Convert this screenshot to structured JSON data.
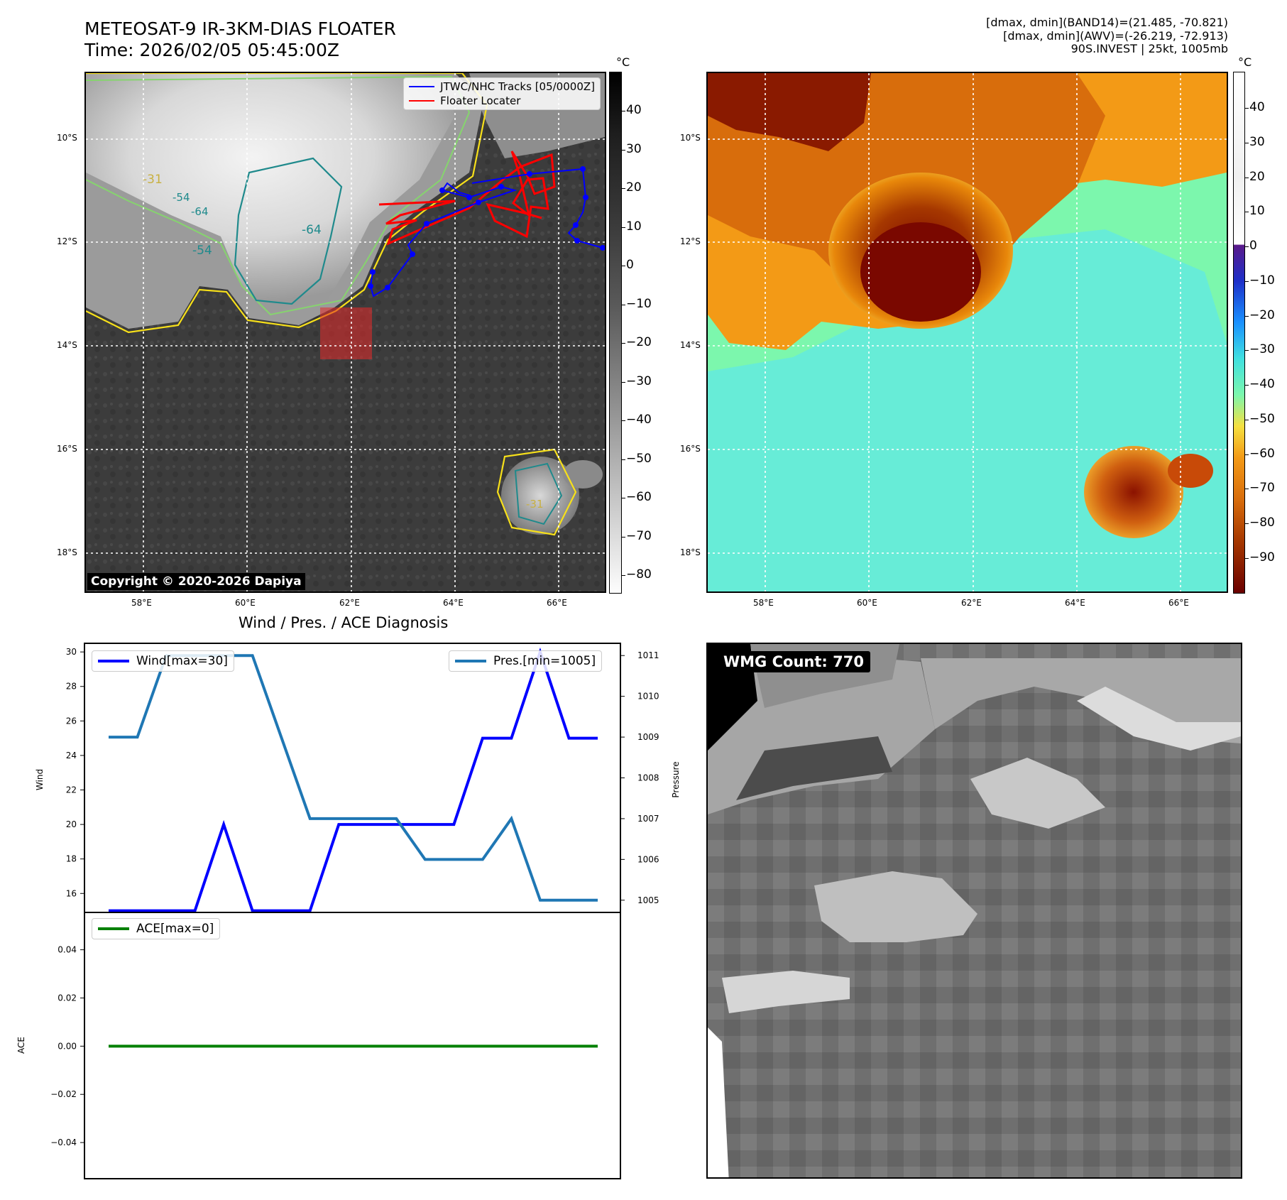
{
  "header": {
    "title_line1": "METEOSAT-9 IR-3KM-DIAS FLOATER",
    "title_line2": "Time: 2026/02/05 05:45:00Z",
    "info_line1": "[dmax, dmin](BAND14)=(21.485, -70.821)",
    "info_line2": "[dmax, dmin](AWV)=(-26.219, -72.913)",
    "info_line3": "90S.INVEST | 25kt, 1005mb"
  },
  "colors": {
    "wind": "#0000ff",
    "pressure": "#1f77b4",
    "ace": "#008000",
    "track": "#0000ff",
    "floater": "#ff0000"
  },
  "map": {
    "lat_labels": [
      "10°S",
      "12°S",
      "14°S",
      "16°S",
      "18°S"
    ],
    "lon_labels": [
      "58°E",
      "60°E",
      "62°E",
      "64°E",
      "66°E"
    ],
    "legend_track": "JTWC/NHC Tracks [05/0000Z]",
    "legend_floater": "Floater Locater",
    "copyright": "Copyright © 2020-2026 Dapiya",
    "contour_labels": [
      "-64",
      "-54",
      "-31",
      "-64",
      "-54",
      "-31"
    ]
  },
  "colorbar_gray": {
    "unit": "°C",
    "ticks": [
      "40",
      "30",
      "20",
      "10",
      "0",
      "−10",
      "−20",
      "−30",
      "−40",
      "−50",
      "−60",
      "−70",
      "−80"
    ]
  },
  "colorbar_color": {
    "unit": "°C",
    "ticks": [
      "40",
      "30",
      "20",
      "10",
      "0",
      "−10",
      "−20",
      "−30",
      "−40",
      "−50",
      "−60",
      "−70",
      "−80",
      "−90"
    ]
  },
  "wmg": {
    "label": "WMG Count: 770"
  },
  "chart_data": [
    {
      "type": "line",
      "title": "Wind / Pres. / ACE Diagnosis",
      "ylabel": "Wind",
      "ylabel_right": "Pressure",
      "x": [
        0,
        1,
        2,
        3,
        4,
        5,
        6,
        7,
        8,
        9,
        10,
        11,
        12,
        13,
        14,
        15,
        16,
        17
      ],
      "ylim": [
        14.9,
        30.5
      ],
      "ylim_right": [
        1004.7,
        1011.3
      ],
      "yticks": [
        16,
        18,
        20,
        22,
        24,
        26,
        28,
        30
      ],
      "yticks_right": [
        1005,
        1006,
        1007,
        1008,
        1009,
        1010,
        1011
      ],
      "series": [
        {
          "name": "Wind[max=30]",
          "axis": "left",
          "values": [
            15,
            15,
            15,
            15,
            20,
            15,
            15,
            15,
            20,
            20,
            20,
            20,
            20,
            25,
            25,
            30,
            25,
            25
          ]
        },
        {
          "name": "Pres.[min=1005]",
          "axis": "right",
          "values": [
            1009,
            1009,
            1011,
            1011,
            1011,
            1011,
            1009,
            1007,
            1007,
            1007,
            1007,
            1006,
            1006,
            1006,
            1007,
            1005,
            1005,
            1005
          ]
        }
      ]
    },
    {
      "type": "line",
      "ylabel": "ACE",
      "x": [
        0,
        17
      ],
      "ylim": [
        -0.055,
        0.0555
      ],
      "yticks": [
        0.04,
        0.02,
        0.0,
        -0.02,
        -0.04
      ],
      "ytick_labels": [
        "0.04",
        "0.02",
        "0.00",
        "−0.02",
        "−0.04"
      ],
      "series": [
        {
          "name": "ACE[max=0]",
          "values": [
            0,
            0
          ]
        }
      ]
    }
  ]
}
